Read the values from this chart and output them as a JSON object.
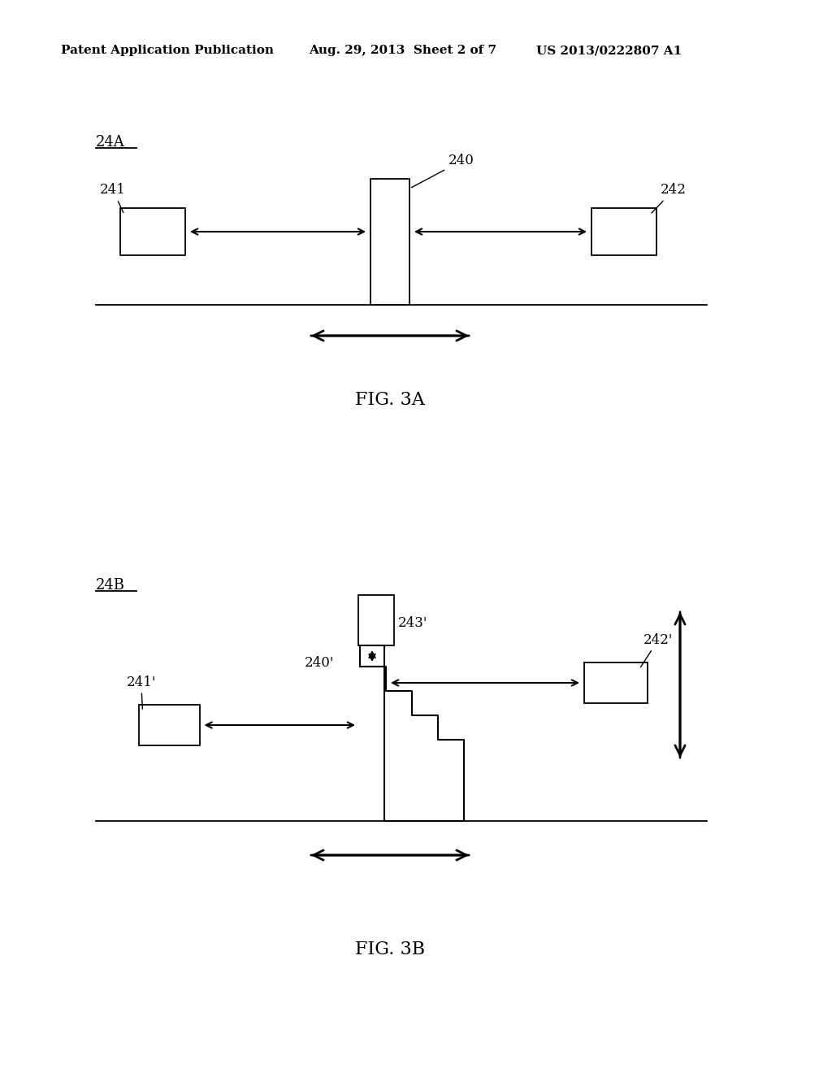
{
  "bg_color": "#ffffff",
  "header_left": "Patent Application Publication",
  "header_center": "Aug. 29, 2013  Sheet 2 of 7",
  "header_right": "US 2013/0222807 A1",
  "fig3a_label": "24A",
  "fig3a_caption": "FIG. 3A",
  "fig3b_label": "24B",
  "fig3b_caption": "FIG. 3B",
  "label_240": "240",
  "label_241": "241",
  "label_242": "242",
  "label_240p": "240'",
  "label_241p": "241'",
  "label_242p": "242'",
  "label_243p": "243'"
}
